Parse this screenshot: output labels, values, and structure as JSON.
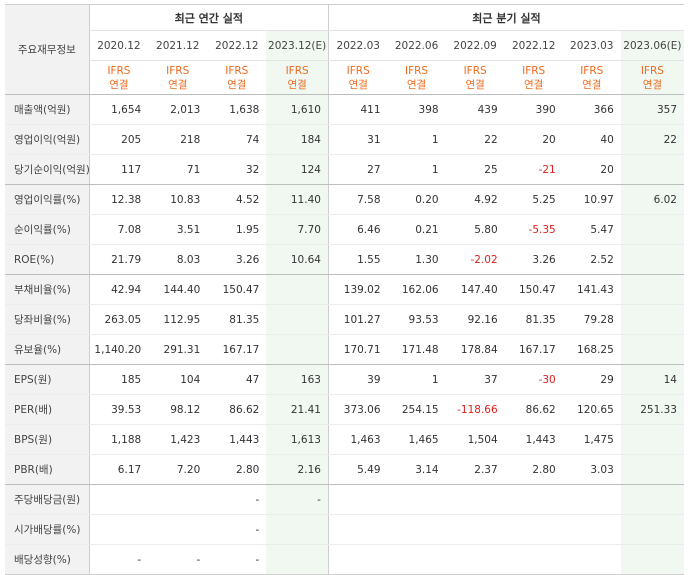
{
  "header": {
    "corner_label": "주요재무정보",
    "annual_group": "최근 연간 실적",
    "quarter_group": "최근 분기 실적",
    "periods": [
      "2020.12",
      "2021.12",
      "2022.12",
      "2023.12(E)",
      "2022.03",
      "2022.06",
      "2022.09",
      "2022.12",
      "2023.03",
      "2023.06(E)"
    ],
    "ifrs_line1": "IFRS",
    "ifrs_line2": "연결"
  },
  "rows": [
    {
      "label": "매출액(억원)",
      "values": [
        "1,654",
        "2,013",
        "1,638",
        "1,610",
        "411",
        "398",
        "439",
        "390",
        "366",
        "357"
      ]
    },
    {
      "label": "영업이익(억원)",
      "values": [
        "205",
        "218",
        "74",
        "184",
        "31",
        "1",
        "22",
        "20",
        "40",
        "22"
      ]
    },
    {
      "label": "당기순이익(억원)",
      "values": [
        "117",
        "71",
        "32",
        "124",
        "27",
        "1",
        "25",
        "-21",
        "20",
        ""
      ]
    },
    {
      "label": "영업이익률(%)",
      "values": [
        "12.38",
        "10.83",
        "4.52",
        "11.40",
        "7.58",
        "0.20",
        "4.92",
        "5.25",
        "10.97",
        "6.02"
      ]
    },
    {
      "label": "순이익률(%)",
      "values": [
        "7.08",
        "3.51",
        "1.95",
        "7.70",
        "6.46",
        "0.21",
        "5.80",
        "-5.35",
        "5.47",
        ""
      ]
    },
    {
      "label": "ROE(%)",
      "values": [
        "21.79",
        "8.03",
        "3.26",
        "10.64",
        "1.55",
        "1.30",
        "-2.02",
        "3.26",
        "2.52",
        ""
      ]
    },
    {
      "label": "부채비율(%)",
      "values": [
        "42.94",
        "144.40",
        "150.47",
        "",
        "139.02",
        "162.06",
        "147.40",
        "150.47",
        "141.43",
        ""
      ]
    },
    {
      "label": "당좌비율(%)",
      "values": [
        "263.05",
        "112.95",
        "81.35",
        "",
        "101.27",
        "93.53",
        "92.16",
        "81.35",
        "79.28",
        ""
      ]
    },
    {
      "label": "유보율(%)",
      "values": [
        "1,140.20",
        "291.31",
        "167.17",
        "",
        "170.71",
        "171.48",
        "178.84",
        "167.17",
        "168.25",
        ""
      ]
    },
    {
      "label": "EPS(원)",
      "values": [
        "185",
        "104",
        "47",
        "163",
        "39",
        "1",
        "37",
        "-30",
        "29",
        "14"
      ]
    },
    {
      "label": "PER(배)",
      "values": [
        "39.53",
        "98.12",
        "86.62",
        "21.41",
        "373.06",
        "254.15",
        "-118.66",
        "86.62",
        "120.65",
        "251.33"
      ]
    },
    {
      "label": "BPS(원)",
      "values": [
        "1,188",
        "1,423",
        "1,443",
        "1,613",
        "1,463",
        "1,465",
        "1,504",
        "1,443",
        "1,475",
        ""
      ]
    },
    {
      "label": "PBR(배)",
      "values": [
        "6.17",
        "7.20",
        "2.80",
        "2.16",
        "5.49",
        "3.14",
        "2.37",
        "2.80",
        "3.03",
        ""
      ]
    },
    {
      "label": "주당배당금(원)",
      "values": [
        "",
        "",
        "-",
        "-",
        "",
        "",
        "",
        "",
        "",
        ""
      ]
    },
    {
      "label": "시가배당률(%)",
      "values": [
        "",
        "",
        "-",
        "",
        "",
        "",
        "",
        "",
        "",
        ""
      ]
    },
    {
      "label": "배당성향(%)",
      "values": [
        "-",
        "-",
        "-",
        "",
        "",
        "",
        "",
        "",
        "",
        ""
      ]
    }
  ],
  "colors": {
    "ifrs": "#f06a1d",
    "negative": "#e0201b",
    "estimate_bg": "#f1f8f1",
    "label_bg": "#f2f2f2"
  }
}
